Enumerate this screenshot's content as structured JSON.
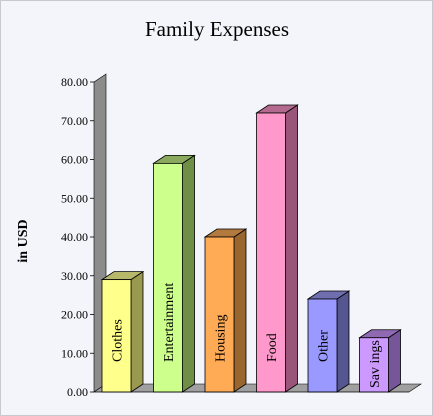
{
  "chart_data": {
    "type": "bar",
    "title": "Family Expenses",
    "ylabel": "in USD",
    "xlabel": "",
    "ylim": [
      0,
      80
    ],
    "ytick_step": 10,
    "ytick_labels": [
      "0.00",
      "10.00",
      "20.00",
      "30.00",
      "40.00",
      "50.00",
      "60.00",
      "70.00",
      "80.00"
    ],
    "categories": [
      "Clothes",
      "Entertainment",
      "Housing",
      "Food",
      "Other",
      "Savings"
    ],
    "category_labels": [
      "Clothes",
      "Entertainment",
      "Housing",
      "Food",
      "Other",
      "Sav ings"
    ],
    "values": [
      29,
      59,
      40,
      72,
      24,
      14
    ],
    "grid": false,
    "legend": "none",
    "bar_colors": [
      {
        "front": "#ffff8c",
        "side": "#99994f",
        "top": "#b8b86a"
      },
      {
        "front": "#ccff8c",
        "side": "#6f8f47",
        "top": "#8aa95f"
      },
      {
        "front": "#ffaa55",
        "side": "#99662f",
        "top": "#b37a3f"
      },
      {
        "front": "#ff99cc",
        "side": "#99557a",
        "top": "#b36a8e"
      },
      {
        "front": "#9999ff",
        "side": "#55558f",
        "top": "#6f6fb0"
      },
      {
        "front": "#cc99ff",
        "side": "#775599",
        "top": "#8f6ab3"
      }
    ],
    "wall_color": "#8c8c8c",
    "floor_color": "#a0a0a0"
  }
}
